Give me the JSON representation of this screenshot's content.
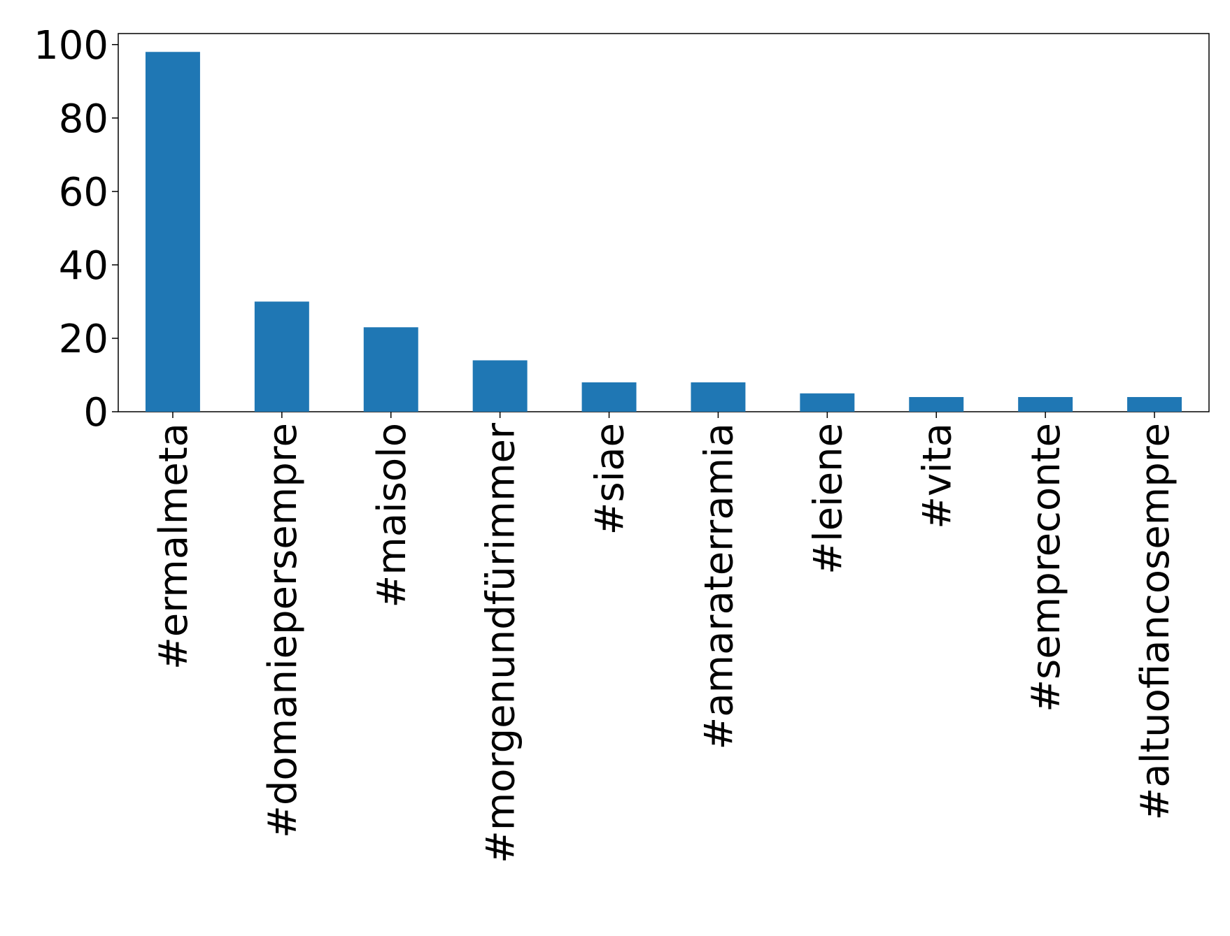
{
  "chart_data": {
    "type": "bar",
    "categories": [
      "#ermalmeta",
      "#domaniepersempre",
      "#maisolo",
      "#morgenundfürimmer",
      "#siae",
      "#amaraterramia",
      "#leiene",
      "#vita",
      "#sempreconte",
      "#altuofiancosempre"
    ],
    "values": [
      98,
      30,
      23,
      14,
      8,
      8,
      5,
      4,
      4,
      4
    ],
    "color": "#1f77b4",
    "ylim": [
      0,
      103
    ],
    "yticks": [
      0,
      20,
      40,
      60,
      80,
      100
    ],
    "grid": false
  }
}
